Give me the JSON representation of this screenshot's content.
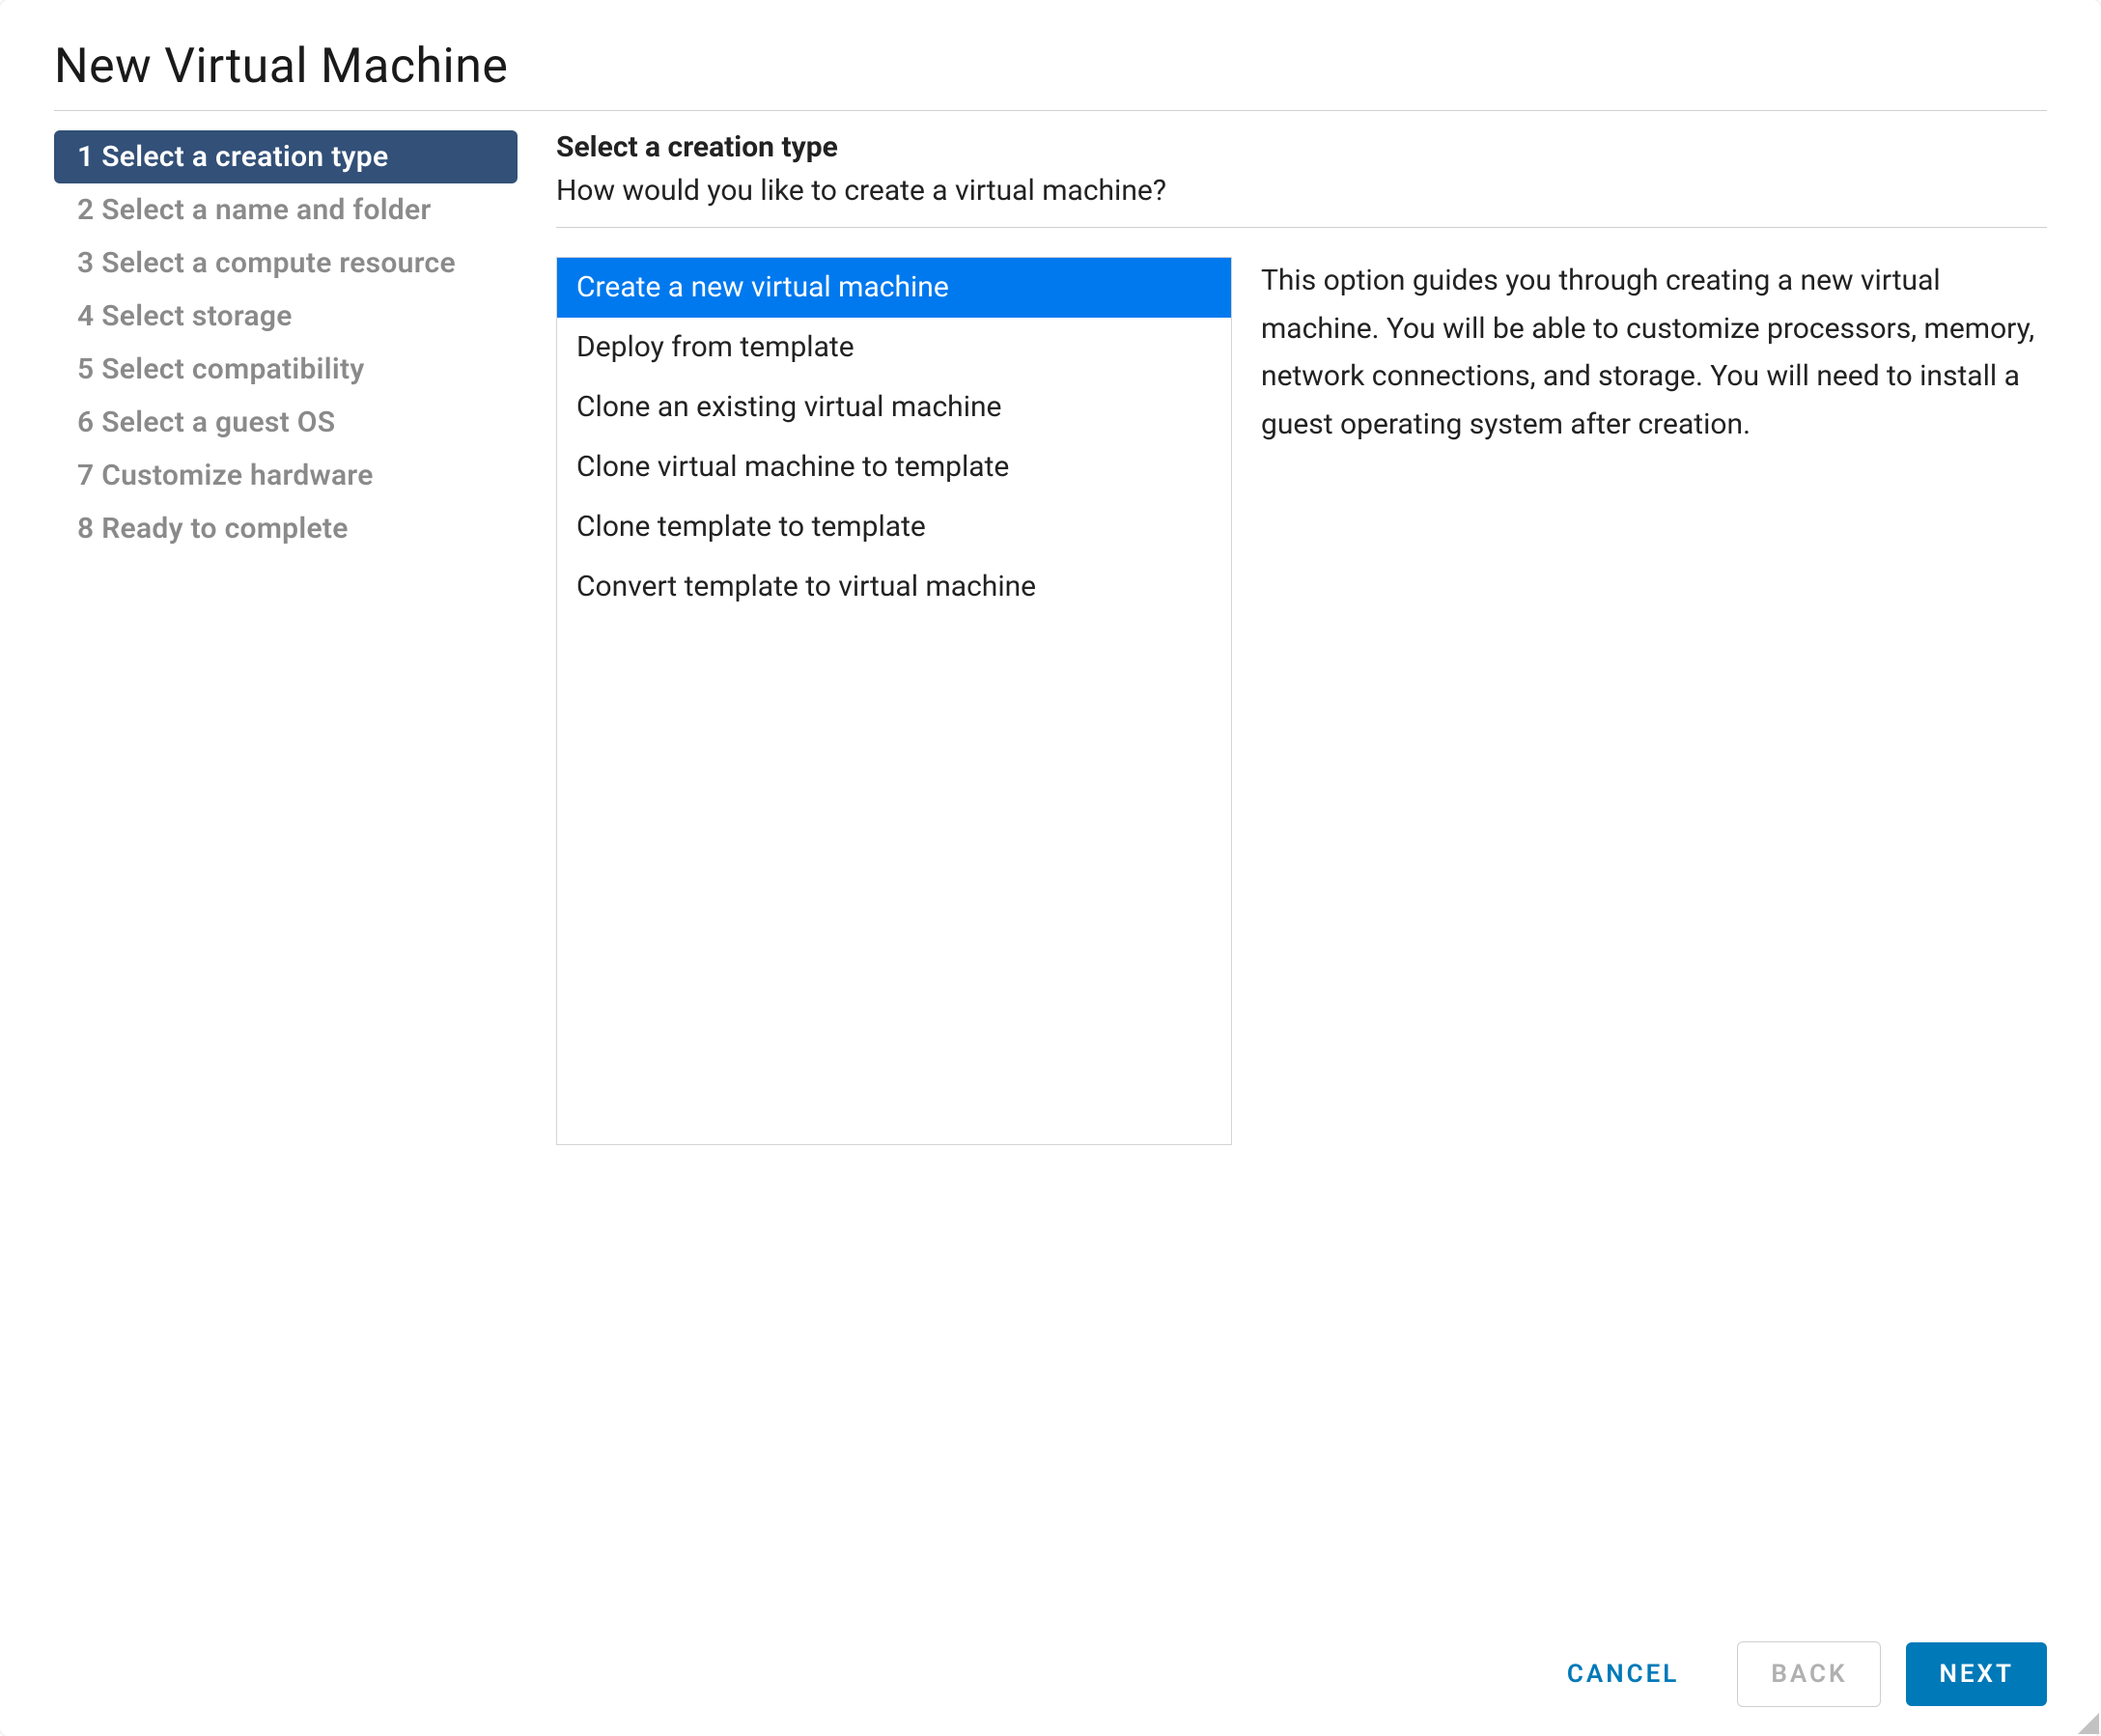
{
  "dialog": {
    "title": "New Virtual Machine"
  },
  "sidebar": {
    "steps": [
      {
        "num": "1",
        "label": "Select a creation type",
        "active": true
      },
      {
        "num": "2",
        "label": "Select a name and folder",
        "active": false
      },
      {
        "num": "3",
        "label": "Select a compute resource",
        "active": false
      },
      {
        "num": "4",
        "label": "Select storage",
        "active": false
      },
      {
        "num": "5",
        "label": "Select compatibility",
        "active": false
      },
      {
        "num": "6",
        "label": "Select a guest OS",
        "active": false
      },
      {
        "num": "7",
        "label": "Customize hardware",
        "active": false
      },
      {
        "num": "8",
        "label": "Ready to complete",
        "active": false
      }
    ]
  },
  "main": {
    "title": "Select a creation type",
    "subtitle": "How would you like to create a virtual machine?",
    "options": [
      {
        "label": "Create a new virtual machine",
        "selected": true
      },
      {
        "label": "Deploy from template",
        "selected": false
      },
      {
        "label": "Clone an existing virtual machine",
        "selected": false
      },
      {
        "label": "Clone virtual machine to template",
        "selected": false
      },
      {
        "label": "Clone template to template",
        "selected": false
      },
      {
        "label": "Convert template to virtual machine",
        "selected": false
      }
    ],
    "description": "This option guides you through creating a new virtual machine. You will be able to customize processors, memory, network connections, and storage. You will need to install a guest operating system after creation."
  },
  "footer": {
    "cancel": "CANCEL",
    "back": "BACK",
    "next": "NEXT"
  },
  "colors": {
    "active_step_bg": "#325078",
    "option_selected_bg": "#0079ef",
    "primary_button_bg": "#0079b8",
    "link_color": "#0079b8",
    "inactive_text": "#8a8a8a",
    "border": "#cfcfcf"
  }
}
